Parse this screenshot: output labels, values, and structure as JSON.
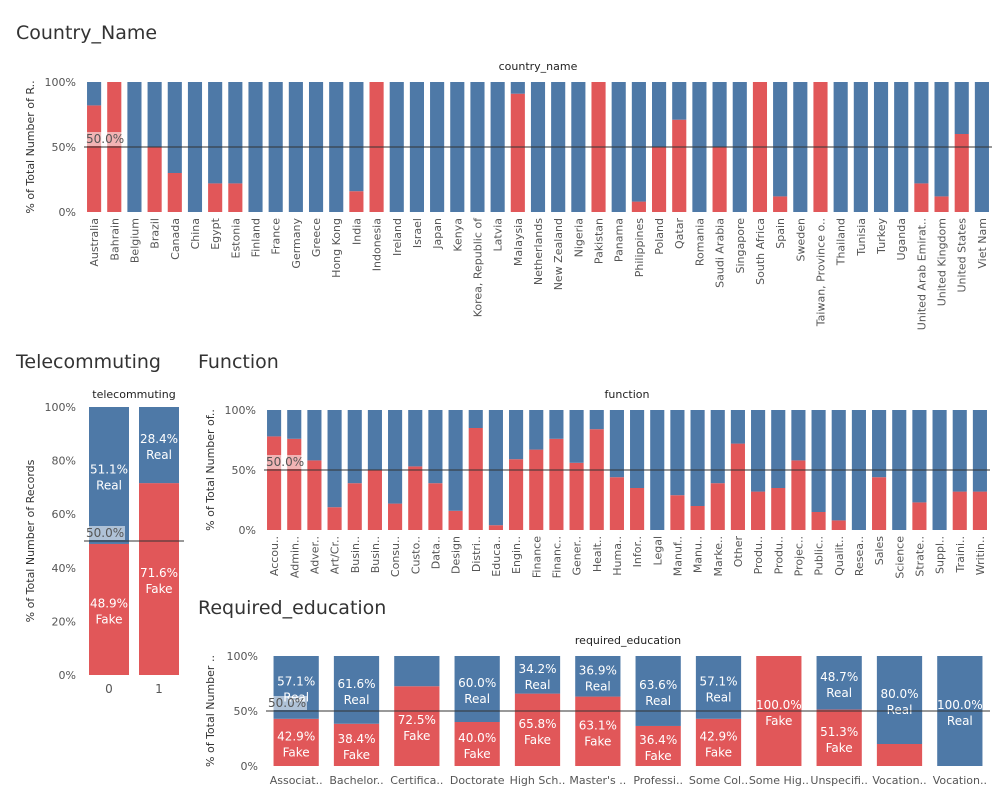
{
  "colors": {
    "fake": "#e15759",
    "real": "#4e79a7",
    "refline": "#333333",
    "axis": "#555555"
  },
  "sheets": {
    "country": {
      "title": "Country_Name"
    },
    "telecommuting": {
      "title": "Telecommuting"
    },
    "function": {
      "title": "Function"
    },
    "education": {
      "title": "Required_education"
    }
  },
  "reference_line_label": "50.0%",
  "chart_data": [
    {
      "id": "country",
      "type": "bar",
      "stacked": true,
      "title": "country_name",
      "ylabel": "% of Total Number of R..",
      "yticks": [
        "0%",
        "50%",
        "100%"
      ],
      "ylim": [
        0,
        100
      ],
      "reference_line": 50,
      "categories": [
        "Australia",
        "Bahrain",
        "Belgium",
        "Brazil",
        "Canada",
        "China",
        "Egypt",
        "Estonia",
        "Finland",
        "France",
        "Germany",
        "Greece",
        "Hong Kong",
        "India",
        "Indonesia",
        "Ireland",
        "Israel",
        "Japan",
        "Kenya",
        "Korea, Republic of",
        "Latvia",
        "Malaysia",
        "Netherlands",
        "New Zealand",
        "Nigeria",
        "Pakistan",
        "Panama",
        "Philippines",
        "Poland",
        "Qatar",
        "Romania",
        "Saudi Arabia",
        "Singapore",
        "South Africa",
        "Spain",
        "Sweden",
        "Taiwan, Province o..",
        "Thailand",
        "Tunisia",
        "Turkey",
        "Uganda",
        "United Arab Emirat..",
        "United Kingdom",
        "United States",
        "Viet Nam"
      ],
      "series": [
        {
          "name": "Fake",
          "values": [
            82,
            100,
            0,
            50,
            30,
            0,
            22,
            22,
            0,
            0,
            0,
            0,
            0,
            16,
            100,
            0,
            0,
            0,
            0,
            0,
            0,
            91,
            0,
            0,
            0,
            100,
            0,
            8,
            50,
            71,
            0,
            50,
            0,
            100,
            12,
            0,
            100,
            0,
            0,
            0,
            0,
            22,
            12,
            60,
            0
          ]
        },
        {
          "name": "Real",
          "values": [
            18,
            0,
            100,
            50,
            70,
            100,
            78,
            78,
            100,
            100,
            100,
            100,
            100,
            84,
            0,
            100,
            100,
            100,
            100,
            100,
            100,
            9,
            100,
            100,
            100,
            0,
            100,
            92,
            50,
            29,
            100,
            50,
            100,
            0,
            88,
            100,
            0,
            100,
            100,
            100,
            100,
            78,
            88,
            40,
            100
          ]
        }
      ]
    },
    {
      "id": "telecommuting",
      "type": "bar",
      "stacked": true,
      "title": "telecommuting",
      "ylabel": "% of Total Number of Records",
      "yticks": [
        "0%",
        "20%",
        "40%",
        "60%",
        "80%",
        "100%"
      ],
      "ylim": [
        0,
        100
      ],
      "reference_line": 50,
      "categories": [
        "0",
        "1"
      ],
      "series": [
        {
          "name": "Fake",
          "values": [
            48.9,
            71.6
          ],
          "labels": [
            "48.9%",
            "71.6%"
          ]
        },
        {
          "name": "Real",
          "values": [
            51.1,
            28.4
          ],
          "labels": [
            "51.1%",
            "28.4%"
          ]
        }
      ]
    },
    {
      "id": "function",
      "type": "bar",
      "stacked": true,
      "title": "function",
      "ylabel": "% of Total Number of..",
      "yticks": [
        "0%",
        "50%",
        "100%"
      ],
      "ylim": [
        0,
        100
      ],
      "reference_line": 50,
      "categories": [
        "Accou..",
        "Admin..",
        "Adver..",
        "Art/Cr..",
        "Busin..",
        "Busin..",
        "Consu..",
        "Custo..",
        "Data..",
        "Design",
        "Distri..",
        "Educa..",
        "Engin..",
        "Finance",
        "Financ..",
        "Gener..",
        "Healt..",
        "Huma..",
        "Infor..",
        "Legal",
        "Manuf..",
        "Manu..",
        "Marke..",
        "Other",
        "Produ..",
        "Produ..",
        "Projec..",
        "Public..",
        "Qualit..",
        "Resea..",
        "Sales",
        "Science",
        "Strate..",
        "Suppl..",
        "Traini..",
        "Writin.."
      ],
      "series": [
        {
          "name": "Fake",
          "values": [
            78,
            76,
            58,
            19,
            39,
            50,
            22,
            53,
            39,
            16,
            85,
            4,
            59,
            67,
            76,
            56,
            84,
            44,
            35,
            0,
            29,
            20,
            39,
            72,
            32,
            35,
            58,
            15,
            8,
            0,
            44,
            0,
            23,
            0,
            32,
            32
          ]
        },
        {
          "name": "Real",
          "values": [
            22,
            24,
            42,
            81,
            61,
            50,
            78,
            47,
            61,
            84,
            15,
            96,
            41,
            33,
            24,
            44,
            16,
            56,
            65,
            100,
            71,
            80,
            61,
            28,
            68,
            65,
            42,
            85,
            92,
            100,
            56,
            100,
            77,
            100,
            68,
            68
          ]
        }
      ]
    },
    {
      "id": "education",
      "type": "bar",
      "stacked": true,
      "title": "required_education",
      "ylabel": "% of Total Number ..",
      "yticks": [
        "0%",
        "50%",
        "100%"
      ],
      "ylim": [
        0,
        100
      ],
      "reference_line": 50,
      "categories": [
        "Associat..",
        "Bachelor..",
        "Certifica..",
        "Doctorate",
        "High Sch..",
        "Master's ..",
        "Professi..",
        "Some Col..",
        "Some Hig..",
        "Unspecifi..",
        "Vocation..",
        "Vocation.."
      ],
      "series": [
        {
          "name": "Fake",
          "values": [
            42.9,
            38.4,
            72.5,
            40.0,
            65.8,
            63.1,
            36.4,
            42.9,
            100,
            51.3,
            20.0,
            0
          ],
          "labels": [
            "42.9%",
            "38.4%",
            "72.5%",
            "40.0%",
            "65.8%",
            "63.1%",
            "36.4%",
            "42.9%",
            "100.0%",
            "51.3%",
            "",
            ""
          ]
        },
        {
          "name": "Real",
          "values": [
            57.1,
            61.6,
            27.5,
            60.0,
            34.2,
            36.9,
            63.6,
            57.1,
            0,
            48.7,
            80.0,
            100
          ],
          "labels": [
            "57.1%",
            "61.6%",
            "",
            "60.0%",
            "34.2%",
            "36.9%",
            "63.6%",
            "57.1%",
            "",
            "48.7%",
            "80.0%",
            "100.0%"
          ]
        }
      ]
    }
  ]
}
